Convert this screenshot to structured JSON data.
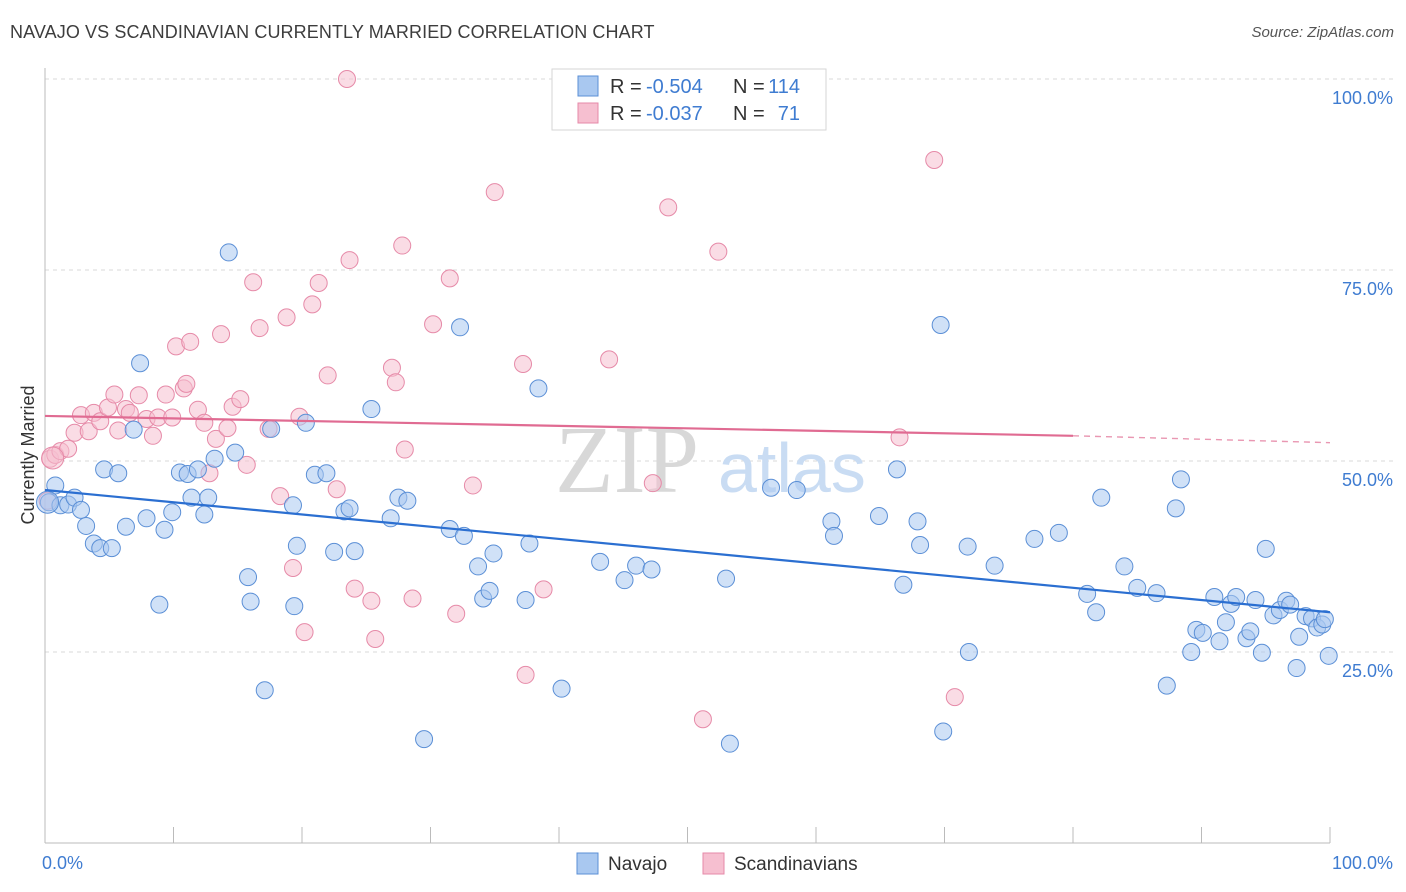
{
  "title": "NAVAJO VS SCANDINAVIAN CURRENTLY MARRIED CORRELATION CHART",
  "source": "Source: ZipAtlas.com",
  "watermark": {
    "zip": "ZIP",
    "atlas": "atlas"
  },
  "colors": {
    "navajo_fill": "#a9c8f0",
    "navajo_stroke": "#5b8fd6",
    "navajo_line": "#2b6fd1",
    "scand_fill": "#f6bfd0",
    "scand_stroke": "#e68aa8",
    "scand_line": "#e06b92",
    "tick_text": "#3f7cd1",
    "grid": "#d9d9d9"
  },
  "legend": {
    "rows": [
      {
        "r_label": "R = ",
        "r_value": "-0.504",
        "n_label": "N = ",
        "n_value": "114"
      },
      {
        "r_label": "R = ",
        "r_value": "-0.037",
        "n_label": "N = ",
        "n_value": "71"
      }
    ]
  },
  "bottom_legend": [
    "Navajo",
    "Scandinavians"
  ],
  "chart_data": {
    "type": "scatter",
    "title": "NAVAJO VS SCANDINAVIAN CURRENTLY MARRIED CORRELATION CHART",
    "xlabel": "",
    "ylabel": "Currently Married",
    "xlim": [
      0,
      100
    ],
    "ylim": [
      2.5,
      103
    ],
    "x_tick_labels": [
      "0.0%",
      "100.0%"
    ],
    "y_ticks": [
      25,
      50,
      75,
      100
    ],
    "y_tick_labels": [
      "25.0%",
      "50.0%",
      "75.0%",
      "100.0%"
    ],
    "series": [
      {
        "name": "Navajo",
        "r": -0.504,
        "n": 114,
        "trend": {
          "x": [
            0,
            100
          ],
          "y": [
            46.2,
            30.2
          ]
        },
        "points": [
          [
            0.3,
            44.6
          ],
          [
            0.8,
            46.8
          ],
          [
            1.2,
            44.2
          ],
          [
            1.8,
            44.3
          ],
          [
            2.3,
            45.2
          ],
          [
            2.8,
            43.6
          ],
          [
            3.2,
            41.5
          ],
          [
            3.8,
            39.2
          ],
          [
            4.3,
            38.6
          ],
          [
            4.6,
            48.9
          ],
          [
            5.2,
            38.6
          ],
          [
            5.7,
            48.4
          ],
          [
            6.3,
            41.4
          ],
          [
            6.9,
            54.1
          ],
          [
            7.4,
            62.8
          ],
          [
            7.9,
            42.5
          ],
          [
            8.9,
            31.2
          ],
          [
            9.3,
            41.0
          ],
          [
            9.9,
            43.3
          ],
          [
            10.5,
            48.5
          ],
          [
            11.1,
            48.3
          ],
          [
            11.4,
            45.2
          ],
          [
            11.9,
            48.9
          ],
          [
            12.4,
            43.0
          ],
          [
            12.7,
            45.2
          ],
          [
            13.2,
            50.3
          ],
          [
            14.3,
            77.3
          ],
          [
            14.8,
            51.1
          ],
          [
            15.8,
            34.8
          ],
          [
            16.0,
            31.6
          ],
          [
            17.1,
            20.0
          ],
          [
            17.6,
            54.2
          ],
          [
            19.3,
            44.2
          ],
          [
            19.4,
            31.0
          ],
          [
            19.6,
            38.9
          ],
          [
            20.3,
            55.0
          ],
          [
            21.0,
            48.2
          ],
          [
            21.9,
            48.4
          ],
          [
            22.5,
            38.1
          ],
          [
            23.3,
            43.4
          ],
          [
            23.7,
            43.8
          ],
          [
            24.1,
            38.2
          ],
          [
            25.4,
            56.8
          ],
          [
            26.9,
            42.5
          ],
          [
            27.5,
            45.2
          ],
          [
            28.2,
            44.8
          ],
          [
            29.5,
            13.6
          ],
          [
            31.5,
            41.1
          ],
          [
            32.3,
            67.5
          ],
          [
            32.6,
            40.2
          ],
          [
            33.7,
            36.2
          ],
          [
            34.1,
            32.0
          ],
          [
            34.6,
            33.0
          ],
          [
            34.9,
            37.9
          ],
          [
            37.4,
            31.8
          ],
          [
            37.7,
            39.2
          ],
          [
            38.4,
            59.5
          ],
          [
            40.2,
            20.2
          ],
          [
            43.2,
            36.8
          ],
          [
            45.1,
            34.4
          ],
          [
            46.0,
            36.3
          ],
          [
            47.2,
            35.8
          ],
          [
            53.0,
            34.6
          ],
          [
            53.3,
            13.0
          ],
          [
            56.5,
            46.5
          ],
          [
            58.5,
            46.2
          ],
          [
            61.2,
            42.1
          ],
          [
            61.4,
            40.2
          ],
          [
            64.9,
            42.8
          ],
          [
            66.3,
            48.9
          ],
          [
            66.8,
            33.8
          ],
          [
            67.9,
            42.1
          ],
          [
            68.1,
            39.0
          ],
          [
            69.7,
            67.8
          ],
          [
            69.9,
            14.6
          ],
          [
            71.8,
            38.8
          ],
          [
            71.9,
            25.0
          ],
          [
            73.9,
            36.3
          ],
          [
            77.0,
            39.8
          ],
          [
            78.9,
            40.6
          ],
          [
            81.1,
            32.6
          ],
          [
            81.8,
            30.2
          ],
          [
            82.2,
            45.2
          ],
          [
            84.0,
            36.2
          ],
          [
            85.0,
            33.4
          ],
          [
            86.5,
            32.7
          ],
          [
            87.3,
            20.6
          ],
          [
            88.0,
            43.8
          ],
          [
            88.4,
            47.6
          ],
          [
            89.2,
            25.0
          ],
          [
            89.6,
            27.9
          ],
          [
            90.1,
            27.5
          ],
          [
            91.0,
            32.2
          ],
          [
            91.4,
            26.4
          ],
          [
            91.9,
            28.9
          ],
          [
            92.3,
            31.3
          ],
          [
            92.7,
            32.2
          ],
          [
            93.5,
            26.8
          ],
          [
            93.8,
            27.7
          ],
          [
            94.2,
            31.8
          ],
          [
            94.7,
            24.9
          ],
          [
            95.0,
            38.5
          ],
          [
            95.6,
            29.8
          ],
          [
            96.1,
            30.5
          ],
          [
            96.6,
            31.7
          ],
          [
            96.9,
            31.2
          ],
          [
            97.4,
            22.9
          ],
          [
            97.6,
            27.0
          ],
          [
            98.1,
            29.7
          ],
          [
            98.6,
            29.4
          ],
          [
            99.0,
            28.2
          ],
          [
            99.4,
            28.6
          ],
          [
            99.6,
            29.3
          ],
          [
            99.9,
            24.5
          ]
        ]
      },
      {
        "name": "Scandinavians",
        "r": -0.037,
        "n": 71,
        "trend": {
          "x": [
            0,
            80
          ],
          "y": [
            55.9,
            53.3
          ]
        },
        "trend_dashed": {
          "x": [
            80,
            100
          ],
          "y": [
            53.3,
            52.4
          ]
        },
        "points": [
          [
            0.2,
            44.8
          ],
          [
            0.4,
            50.3
          ],
          [
            0.8,
            50.8
          ],
          [
            1.2,
            51.3
          ],
          [
            1.8,
            51.6
          ],
          [
            2.3,
            53.7
          ],
          [
            2.8,
            56.0
          ],
          [
            3.4,
            53.9
          ],
          [
            3.8,
            56.3
          ],
          [
            4.3,
            55.2
          ],
          [
            4.9,
            57.0
          ],
          [
            5.4,
            58.7
          ],
          [
            5.7,
            54.0
          ],
          [
            6.3,
            56.8
          ],
          [
            6.6,
            56.3
          ],
          [
            7.3,
            58.6
          ],
          [
            7.9,
            55.5
          ],
          [
            8.4,
            53.3
          ],
          [
            8.8,
            55.7
          ],
          [
            9.4,
            58.7
          ],
          [
            9.9,
            55.7
          ],
          [
            10.2,
            65.0
          ],
          [
            10.8,
            59.5
          ],
          [
            11.0,
            60.1
          ],
          [
            11.3,
            65.6
          ],
          [
            11.9,
            56.7
          ],
          [
            12.4,
            55.0
          ],
          [
            12.8,
            48.4
          ],
          [
            13.3,
            52.9
          ],
          [
            13.7,
            66.6
          ],
          [
            14.2,
            54.3
          ],
          [
            14.6,
            57.1
          ],
          [
            15.2,
            58.1
          ],
          [
            15.7,
            49.5
          ],
          [
            16.2,
            73.4
          ],
          [
            16.7,
            67.4
          ],
          [
            17.4,
            54.2
          ],
          [
            18.3,
            45.4
          ],
          [
            18.8,
            68.8
          ],
          [
            19.3,
            36.0
          ],
          [
            19.8,
            55.8
          ],
          [
            20.2,
            27.6
          ],
          [
            20.8,
            70.5
          ],
          [
            21.3,
            73.3
          ],
          [
            22.0,
            61.2
          ],
          [
            22.7,
            46.3
          ],
          [
            23.7,
            76.3
          ],
          [
            24.1,
            33.3
          ],
          [
            25.4,
            31.7
          ],
          [
            25.7,
            26.7
          ],
          [
            27.0,
            62.2
          ],
          [
            27.3,
            60.3
          ],
          [
            27.8,
            78.2
          ],
          [
            28.0,
            51.5
          ],
          [
            28.6,
            32.0
          ],
          [
            30.2,
            67.9
          ],
          [
            31.5,
            73.9
          ],
          [
            32.0,
            30.0
          ],
          [
            33.3,
            46.8
          ],
          [
            35.0,
            85.2
          ],
          [
            37.2,
            62.7
          ],
          [
            37.4,
            22.0
          ],
          [
            38.8,
            33.2
          ],
          [
            43.9,
            63.3
          ],
          [
            47.3,
            47.1
          ],
          [
            48.5,
            83.2
          ],
          [
            51.2,
            16.2
          ],
          [
            52.4,
            77.4
          ],
          [
            66.5,
            53.1
          ],
          [
            69.2,
            89.4
          ],
          [
            70.8,
            19.1
          ]
        ]
      }
    ],
    "extra_points": [
      [
        23.5,
        100.0
      ]
    ]
  }
}
